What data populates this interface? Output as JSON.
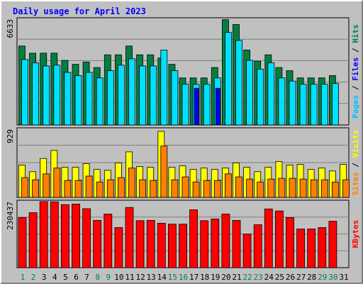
{
  "colors": {
    "background": "#c0c0c0",
    "plot_background": "#c0c0c0",
    "grid": "#808080",
    "title": "#0000ff",
    "hits_fill": "#008040",
    "files_fill": "#00e0ff",
    "pages_fill": "#00c0ff",
    "visits_fill": "#ffff00",
    "sites_fill": "#ff8000",
    "kbytes_fill": "#ff0000",
    "bar_outline": "#000000",
    "day_weekday": "#000000",
    "day_weekend": "#00805c"
  },
  "chart_data": {
    "type": "bar",
    "title": "Daily usage for April 2023",
    "days": [
      "1",
      "2",
      "3",
      "4",
      "5",
      "6",
      "7",
      "8",
      "9",
      "10",
      "11",
      "12",
      "13",
      "14",
      "15",
      "16",
      "17",
      "18",
      "19",
      "20",
      "21",
      "22",
      "23",
      "24",
      "25",
      "26",
      "27",
      "28",
      "29",
      "30",
      "31"
    ],
    "weekend_days": [
      "1",
      "2",
      "8",
      "9",
      "15",
      "16",
      "22",
      "23",
      "29",
      "30"
    ],
    "panels": [
      {
        "id": "hits-files-pages",
        "ylabels": [
          {
            "text": "Hits",
            "color": "#008040"
          },
          {
            "text": "Files",
            "color": "#0000ff"
          },
          {
            "text": "Pages",
            "color": "#00c0ff"
          }
        ],
        "max_label": "6633",
        "ymax": 6633,
        "series": [
          {
            "name": "Hits",
            "color": "#008040",
            "values": [
              4950,
              4500,
              4500,
              4500,
              4050,
              3800,
              3950,
              3600,
              4400,
              4400,
              4950,
              4400,
              4400,
              4200,
              3800,
              2950,
              2950,
              2950,
              3600,
              6600,
              6300,
              4700,
              4000,
              4400,
              3600,
              3400,
              2950,
              2950,
              2950,
              3100,
              null
            ]
          },
          {
            "name": "Files",
            "color": "#00e0ff",
            "values": [
              4100,
              3900,
              3700,
              3750,
              3300,
              3100,
              3300,
              2950,
              3400,
              3750,
              4150,
              3700,
              3700,
              4700,
              3400,
              2550,
              2550,
              2550,
              2950,
              5800,
              5300,
              4050,
              3500,
              3900,
              2950,
              2750,
              2550,
              2550,
              2550,
              2600,
              null
            ]
          },
          {
            "name": "Pages",
            "color": "#0000ff",
            "values": [
              null,
              null,
              null,
              null,
              null,
              null,
              null,
              null,
              null,
              null,
              null,
              null,
              null,
              null,
              null,
              null,
              2300,
              null,
              2300,
              null,
              null,
              null,
              null,
              null,
              null,
              null,
              null,
              null,
              null,
              null,
              null
            ]
          }
        ]
      },
      {
        "id": "visits-sites",
        "ylabels": [
          {
            "text": "Visits",
            "color": "#ffff00"
          },
          {
            "text": "Sites",
            "color": "#ff8000"
          }
        ],
        "max_label": "929",
        "ymax": 929,
        "series": [
          {
            "name": "Visits",
            "color": "#ffff00",
            "values": [
              440,
              350,
              530,
              640,
              410,
              410,
              460,
              380,
              370,
              470,
              620,
              420,
              410,
              900,
              410,
              430,
              380,
              400,
              380,
              400,
              470,
              410,
              350,
              410,
              490,
              440,
              450,
              380,
              400,
              360,
              450
            ]
          },
          {
            "name": "Sites",
            "color": "#ff8000",
            "values": [
              270,
              240,
              320,
              400,
              230,
              230,
              290,
              210,
              240,
              270,
              400,
              240,
              230,
              700,
              240,
              280,
              210,
              230,
              230,
              320,
              280,
              250,
              210,
              250,
              260,
              260,
              250,
              240,
              240,
              210,
              240
            ]
          }
        ]
      },
      {
        "id": "kbytes",
        "ylabels": [
          {
            "text": "KBytes",
            "color": "#ff0000"
          }
        ],
        "max_label": "230437",
        "ymax": 230437,
        "series": [
          {
            "name": "KBytes",
            "color": "#ff0000",
            "values": [
              175000,
              192000,
              230437,
              230000,
              220000,
              222000,
              206000,
              165000,
              187000,
              140000,
              210000,
              164000,
              165000,
              155000,
              152000,
              152000,
              202000,
              164000,
              170000,
              187000,
              165000,
              117000,
              150000,
              205000,
              198000,
              175000,
              135000,
              135000,
              140000,
              162000,
              null
            ]
          }
        ]
      }
    ]
  }
}
